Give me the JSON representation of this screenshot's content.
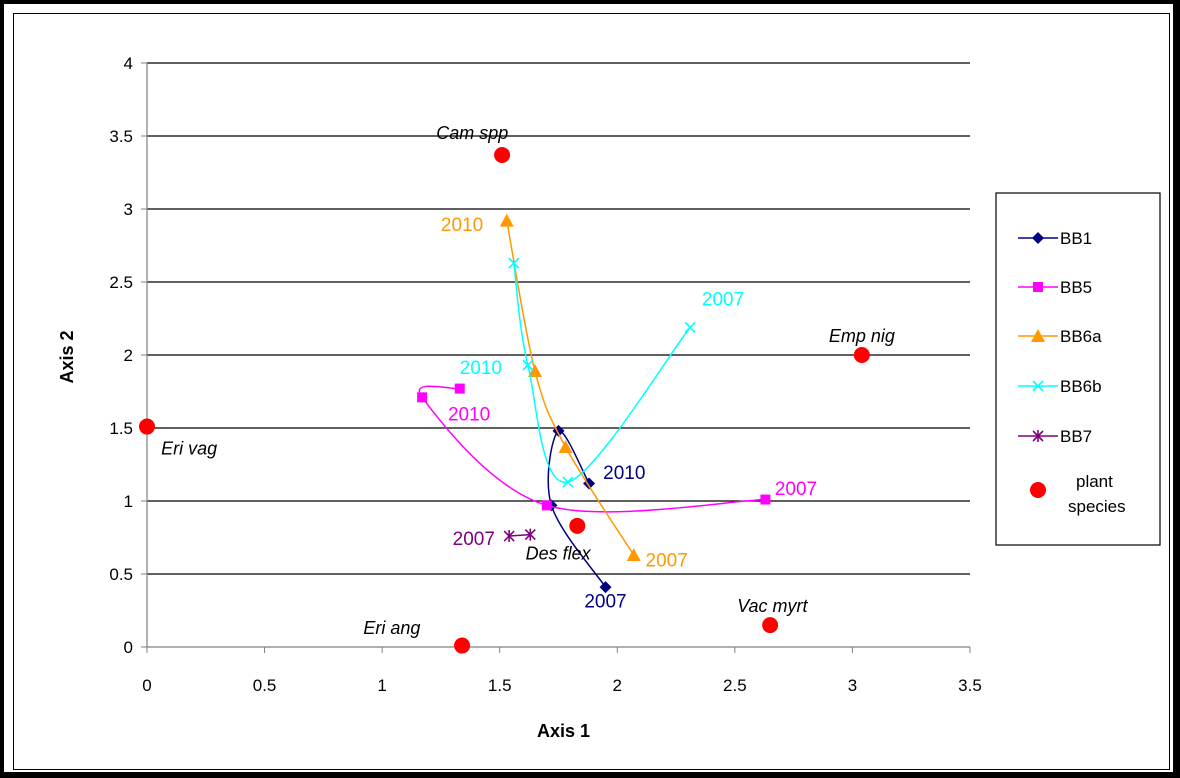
{
  "chart_data": {
    "type": "scatter",
    "xlabel": "Axis 1",
    "ylabel": "Axis 2",
    "xlim": [
      0,
      3.5
    ],
    "ylim": [
      0,
      4
    ],
    "xticks": [
      "0",
      "0.5",
      "1",
      "1.5",
      "2",
      "2.5",
      "3",
      "3.5"
    ],
    "yticks": [
      "0",
      "0.5",
      "1",
      "1.5",
      "2",
      "2.5",
      "3",
      "3.5",
      "4"
    ],
    "grid": "horizontal",
    "legend_position": "right",
    "series": [
      {
        "name": "BB1",
        "color": "#000080",
        "marker": "diamond",
        "points": [
          [
            1.95,
            0.41
          ],
          [
            1.72,
            0.97
          ],
          [
            1.75,
            1.48
          ],
          [
            1.88,
            1.12
          ]
        ],
        "labels": [
          {
            "text": "2007",
            "x": 1.86,
            "y": 0.27
          },
          {
            "text": "2010",
            "x": 1.94,
            "y": 1.15
          }
        ]
      },
      {
        "name": "BB5",
        "color": "#FF00FF",
        "marker": "square",
        "points": [
          [
            2.63,
            1.01
          ],
          [
            1.7,
            0.97
          ],
          [
            1.17,
            1.71
          ],
          [
            1.33,
            1.77
          ]
        ],
        "labels": [
          {
            "text": "2007",
            "x": 2.67,
            "y": 1.04
          },
          {
            "text": "2010",
            "x": 1.28,
            "y": 1.55
          }
        ]
      },
      {
        "name": "BB6a",
        "color": "#FF9900",
        "marker": "triangle",
        "points": [
          [
            2.07,
            0.63
          ],
          [
            1.78,
            1.37
          ],
          [
            1.65,
            1.89
          ],
          [
            1.53,
            2.92
          ]
        ],
        "labels": [
          {
            "text": "2007",
            "x": 2.12,
            "y": 0.55
          },
          {
            "text": "2010",
            "x": 1.25,
            "y": 2.85
          }
        ]
      },
      {
        "name": "BB6b",
        "color": "#00FFFF",
        "marker": "x",
        "points": [
          [
            2.31,
            2.19
          ],
          [
            1.79,
            1.13
          ],
          [
            1.62,
            1.93
          ],
          [
            1.56,
            2.63
          ]
        ],
        "labels": [
          {
            "text": "2007",
            "x": 2.36,
            "y": 2.34
          },
          {
            "text": "2010",
            "x": 1.33,
            "y": 1.87
          }
        ]
      },
      {
        "name": "BB7",
        "color": "#800080",
        "marker": "star",
        "points": [
          [
            1.63,
            0.77
          ],
          [
            1.54,
            0.76
          ]
        ],
        "labels": [
          {
            "text": "2007",
            "x": 1.3,
            "y": 0.7
          }
        ]
      },
      {
        "name": "plant species",
        "color": "#FF0000",
        "marker": "circle",
        "points": [
          [
            1.51,
            3.37
          ],
          [
            0.0,
            1.51
          ],
          [
            3.04,
            2.0
          ],
          [
            1.83,
            0.83
          ],
          [
            1.34,
            0.01
          ],
          [
            2.65,
            0.15
          ]
        ],
        "labels": [
          {
            "text": "Cam spp",
            "x": 1.23,
            "y": 3.48
          },
          {
            "text": "Eri vag",
            "x": 0.06,
            "y": 1.32
          },
          {
            "text": "Emp nig",
            "x": 2.9,
            "y": 2.09
          },
          {
            "text": "Des flex",
            "x": 1.61,
            "y": 0.6
          },
          {
            "text": "Eri ang",
            "x": 0.92,
            "y": 0.09
          },
          {
            "text": "Vac myrt",
            "x": 2.51,
            "y": 0.24
          }
        ]
      }
    ]
  }
}
